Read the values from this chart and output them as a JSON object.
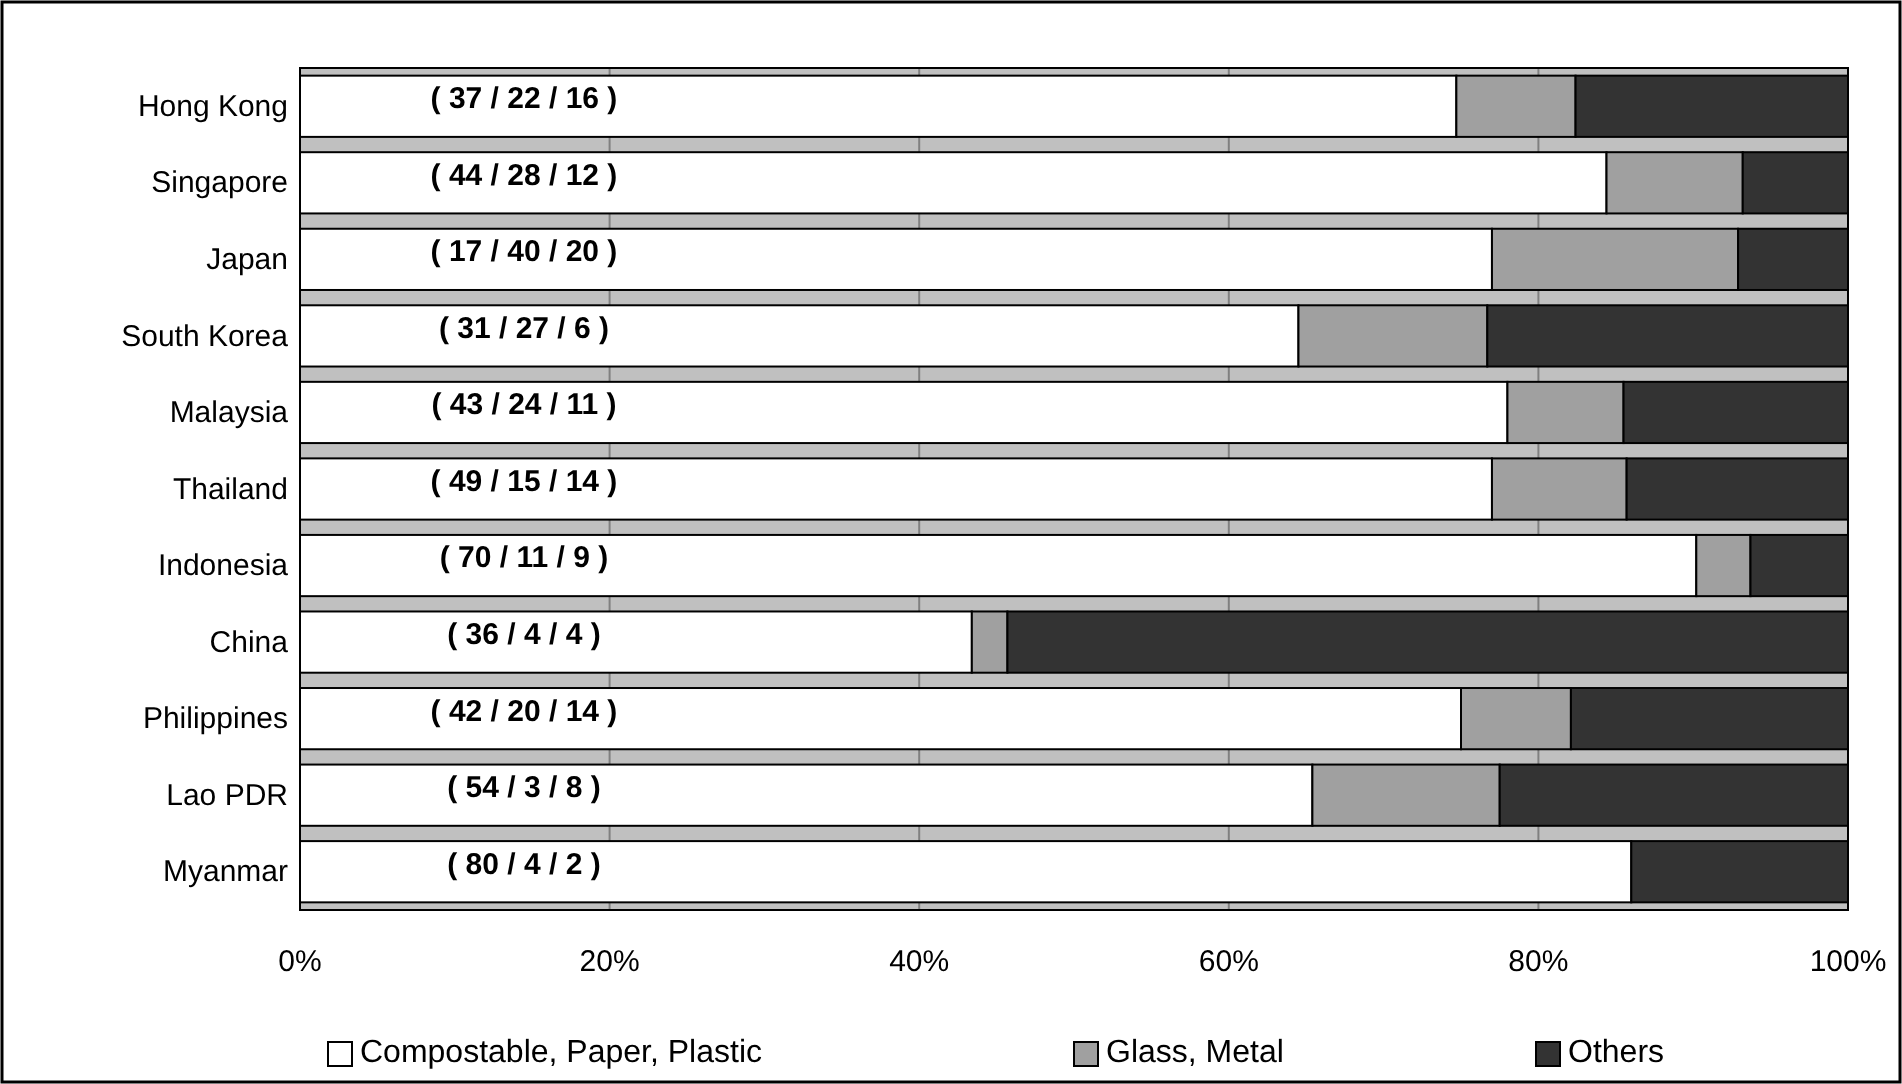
{
  "chart_data": {
    "type": "bar",
    "orientation": "horizontal",
    "stacked": true,
    "categories": [
      "Hong Kong",
      "Singapore",
      "Japan",
      "South Korea",
      "Malaysia",
      "Thailand",
      "Indonesia",
      "China",
      "Philippines",
      "Lao PDR",
      "Myanmar"
    ],
    "series": [
      {
        "name": "Compostable, Paper, Plastic",
        "color": "#ffffff",
        "values": [
          74.7,
          84.4,
          77.0,
          64.5,
          78.0,
          77.0,
          90.2,
          43.4,
          75.0,
          65.4,
          86.0
        ],
        "value_labels": [
          "( 37 / 22 / 16 )",
          "( 44 / 28 / 12 )",
          "( 17 / 40 / 20 )",
          "( 31 / 27 / 6 )",
          "( 43 / 24 / 11 )",
          "( 49 / 15 / 14 )",
          "( 70 / 11 / 9 )",
          "( 36 / 4 / 4 )",
          "( 42 / 20 / 14 )",
          "( 54 / 3 / 8 )",
          "( 80 / 4 / 2 )"
        ]
      },
      {
        "name": "Glass, Metal",
        "color": "#a0a0a0",
        "values": [
          7.7,
          8.8,
          15.9,
          12.2,
          7.5,
          8.7,
          3.5,
          2.3,
          7.1,
          12.1,
          0
        ]
      },
      {
        "name": "Others",
        "color": "#333333",
        "values": [
          17.6,
          6.8,
          7.1,
          23.3,
          14.5,
          14.3,
          6.3,
          54.3,
          17.9,
          22.5,
          14.0
        ]
      }
    ],
    "xlim": [
      0,
      100
    ],
    "xticks": [
      {
        "value": 0,
        "label": "0%"
      },
      {
        "value": 20,
        "label": "20%"
      },
      {
        "value": 40,
        "label": "40%"
      },
      {
        "value": 60,
        "label": "60%"
      },
      {
        "value": 80,
        "label": "80%"
      },
      {
        "value": 100,
        "label": "100%"
      }
    ],
    "grid": "x",
    "legend": "bottom"
  }
}
